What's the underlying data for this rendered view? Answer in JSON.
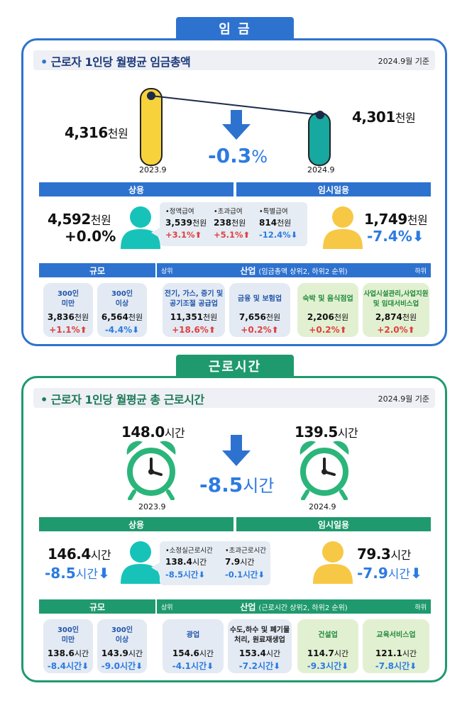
{
  "wage": {
    "tab": "임 금",
    "title": "근로자 1인당 월평균 임금총액",
    "basis": "2024.9월 기준",
    "prev": {
      "year": "2023.9",
      "value": "4,316",
      "unit": "천원"
    },
    "curr": {
      "year": "2024.9",
      "value": "4,301",
      "unit": "천원"
    },
    "change": {
      "num": "-0.3",
      "unit": "%"
    },
    "regular_label": "상용",
    "temp_label": "임시일용",
    "regular": {
      "value": "4,592",
      "unit": "천원",
      "change": "+0.0%"
    },
    "temp": {
      "value": "1,749",
      "unit": "천원",
      "change": "-7.4%"
    },
    "breakdown": [
      {
        "label": "•정액급여",
        "value": "3,539",
        "unit": "천원",
        "change": "+3.1%",
        "dir": "up"
      },
      {
        "label": "•초과급여",
        "value": "238",
        "unit": "천원",
        "change": "+5.1%",
        "dir": "up"
      },
      {
        "label": "•특별급여",
        "value": "814",
        "unit": "천원",
        "change": "-12.4%",
        "dir": "down"
      }
    ],
    "scale_label": "규모",
    "industry_label": "산업",
    "industry_note": "(임금총액 상위2, 하위2 순위)",
    "upper": "상위",
    "lower": "하위",
    "cards": [
      {
        "name": "300인\n미만",
        "value": "3,836",
        "unit": "천원",
        "change": "+1.1%",
        "dir": "up"
      },
      {
        "name": "300인\n이상",
        "value": "6,564",
        "unit": "천원",
        "change": "-4.4%",
        "dir": "down"
      },
      {
        "name": "전기, 가스, 증기 및\n공기조절 공급업",
        "value": "11,351",
        "unit": "천원",
        "change": "+18.6%",
        "dir": "up"
      },
      {
        "name": "금융 및 보험업",
        "value": "7,656",
        "unit": "천원",
        "change": "+0.2%",
        "dir": "up"
      },
      {
        "name": "숙박 및 음식점업",
        "value": "2,206",
        "unit": "천원",
        "change": "+0.2%",
        "dir": "up"
      },
      {
        "name": "사업시설관리,사업지원\n및 임대서비스업",
        "value": "2,874",
        "unit": "천원",
        "change": "+2.0%",
        "dir": "up"
      }
    ]
  },
  "hours": {
    "tab": "근로시간",
    "title": "근로자 1인당 월평균 총 근로시간",
    "basis": "2024.9월 기준",
    "prev": {
      "year": "2023.9",
      "value": "148.0",
      "unit": "시간"
    },
    "curr": {
      "year": "2024.9",
      "value": "139.5",
      "unit": "시간"
    },
    "change": {
      "num": "-8.5",
      "unit": "시간"
    },
    "regular_label": "상용",
    "temp_label": "임시일용",
    "regular": {
      "value": "146.4",
      "unit": "시간",
      "change_num": "-8.5",
      "change_unit": "시간"
    },
    "temp": {
      "value": "79.3",
      "unit": "시간",
      "change_num": "-7.9",
      "change_unit": "시간"
    },
    "breakdown": [
      {
        "label": "•소정실근로시간",
        "value": "138.4",
        "unit": "시간",
        "change": "-8.5시간",
        "dir": "down"
      },
      {
        "label": "•초과근로시간",
        "value": "7.9",
        "unit": "시간",
        "change": "-0.1시간",
        "dir": "down"
      }
    ],
    "scale_label": "규모",
    "industry_label": "산업",
    "industry_note": "(근로시간 상위2, 하위2 순위)",
    "upper": "상위",
    "lower": "하위",
    "cards": [
      {
        "name": "300인\n미만",
        "value": "138.6",
        "unit": "시간",
        "change": "-8.4시간",
        "dir": "down"
      },
      {
        "name": "300인\n이상",
        "value": "143.9",
        "unit": "시간",
        "change": "-9.0시간",
        "dir": "down"
      },
      {
        "name": "광업",
        "value": "154.6",
        "unit": "시간",
        "change": "-4.1시간",
        "dir": "down"
      },
      {
        "name": "수도,하수 및 폐기물\n처리, 원료재생업",
        "value": "153.4",
        "unit": "시간",
        "change": "-7.2시간",
        "dir": "down"
      },
      {
        "name": "건설업",
        "value": "114.7",
        "unit": "시간",
        "change": "-9.3시간",
        "dir": "down"
      },
      {
        "name": "교육서비스업",
        "value": "121.1",
        "unit": "시간",
        "change": "-7.8시간",
        "dir": "down"
      }
    ]
  },
  "colors": {
    "blue": "#2e72cf",
    "navy": "#1c3a7a",
    "green": "#1f9a6e",
    "teal": "#17c3b9",
    "yellow": "#f7c845",
    "up": "#e04040",
    "down": "#2c7be0"
  },
  "chart_data": [
    {
      "type": "line",
      "x": [
        "2023.9",
        "2024.9"
      ],
      "values": [
        4316,
        4301
      ],
      "unit": "천원"
    },
    {
      "type": "bar",
      "categories": [
        "2023.9",
        "2024.9"
      ],
      "values": [
        148.0,
        139.5
      ],
      "unit": "시간"
    }
  ]
}
